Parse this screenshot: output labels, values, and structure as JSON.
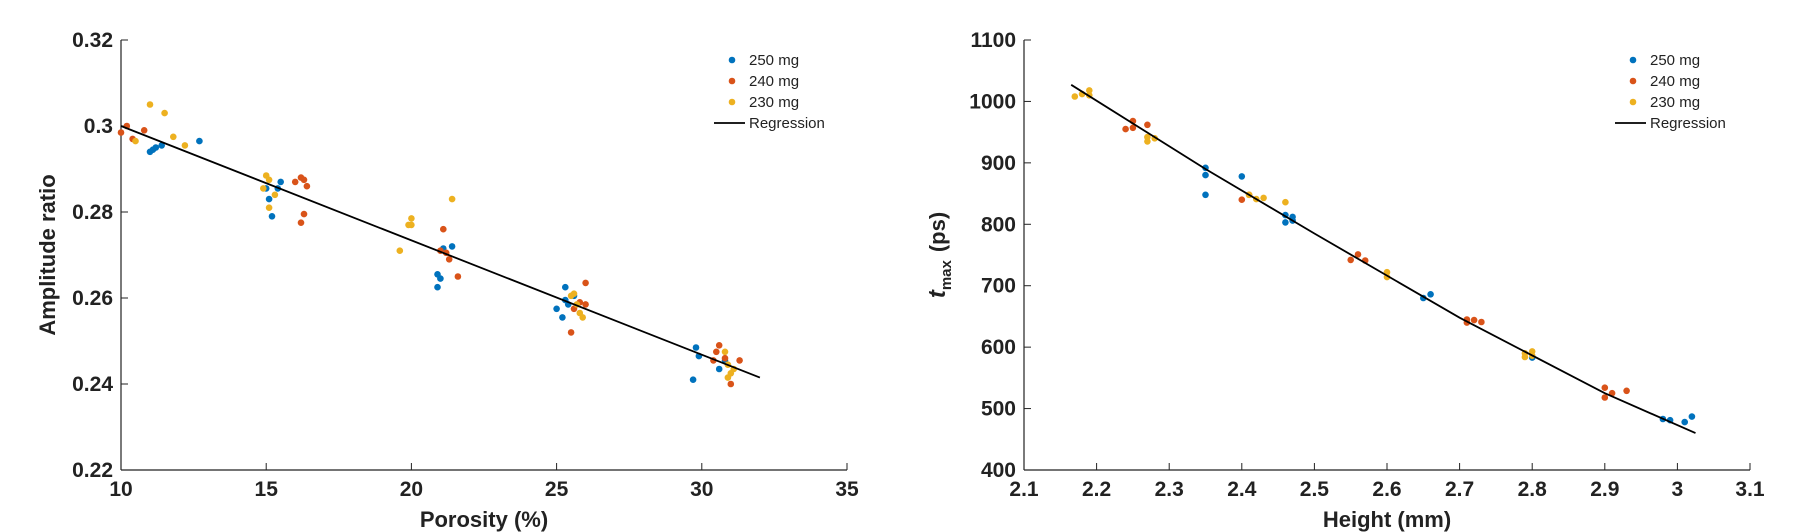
{
  "chart_data": [
    {
      "type": "scatter",
      "xlabel": "Porosity (%)",
      "ylabel": "Amplitude ratio",
      "xlim": [
        10,
        35
      ],
      "ylim": [
        0.22,
        0.32
      ],
      "xticks": [
        10,
        15,
        20,
        25,
        30,
        35
      ],
      "yticks": [
        0.22,
        0.24,
        0.26,
        0.28,
        0.3,
        0.32
      ],
      "xtick_labels": [
        "10",
        "15",
        "20",
        "25",
        "30",
        "35"
      ],
      "ytick_labels": [
        "0.22",
        "0.24",
        "0.26",
        "0.28",
        "0.3",
        "0.32"
      ],
      "legend_position": "top-right",
      "series": [
        {
          "name": "250 mg",
          "color": "#0072BD",
          "x": [
            11.0,
            11.1,
            11.2,
            11.4,
            12.7,
            15.0,
            15.1,
            15.2,
            15.4,
            15.5,
            20.9,
            21.0,
            20.9,
            21.1,
            21.4,
            25.0,
            25.2,
            25.3,
            25.3,
            25.4,
            25.6,
            29.8,
            29.9,
            30.6,
            30.8,
            29.7
          ],
          "y": [
            0.294,
            0.2945,
            0.295,
            0.2955,
            0.2965,
            0.2855,
            0.283,
            0.279,
            0.2855,
            0.287,
            0.2655,
            0.2645,
            0.2625,
            0.2715,
            0.272,
            0.2575,
            0.2555,
            0.2625,
            0.2595,
            0.2585,
            0.2605,
            0.2485,
            0.2465,
            0.2435,
            0.2455,
            0.241
          ]
        },
        {
          "name": "240 mg",
          "color": "#D95319",
          "x": [
            10.0,
            10.2,
            10.4,
            10.8,
            16.0,
            16.2,
            16.3,
            16.4,
            16.2,
            16.3,
            21.0,
            21.1,
            21.3,
            21.2,
            21.6,
            25.6,
            25.8,
            26.0,
            26.0,
            25.5,
            30.5,
            30.6,
            30.8,
            31.0,
            31.3,
            30.4
          ],
          "y": [
            0.2985,
            0.3,
            0.297,
            0.299,
            0.287,
            0.288,
            0.2875,
            0.286,
            0.2775,
            0.2795,
            0.271,
            0.276,
            0.269,
            0.2705,
            0.265,
            0.2575,
            0.259,
            0.2585,
            0.2635,
            0.252,
            0.2475,
            0.249,
            0.246,
            0.24,
            0.2455,
            0.2455
          ]
        },
        {
          "name": "230 mg",
          "color": "#EDB120",
          "x": [
            10.5,
            11.0,
            11.5,
            11.8,
            12.2,
            14.9,
            15.0,
            15.1,
            15.3,
            15.1,
            19.6,
            19.9,
            20.0,
            20.0,
            21.4,
            25.5,
            25.7,
            25.8,
            25.9,
            25.6,
            30.8,
            30.9,
            31.0,
            31.1,
            30.9
          ],
          "y": [
            0.2965,
            0.305,
            0.303,
            0.2975,
            0.2955,
            0.2855,
            0.2885,
            0.2875,
            0.284,
            0.281,
            0.271,
            0.277,
            0.2785,
            0.277,
            0.283,
            0.2605,
            0.2585,
            0.2565,
            0.2555,
            0.261,
            0.2475,
            0.2445,
            0.2425,
            0.2435,
            0.2415
          ]
        },
        {
          "name": "Regression",
          "color": "#000000",
          "kind": "line",
          "x": [
            10.0,
            32.0
          ],
          "y": [
            0.3,
            0.2415
          ]
        }
      ]
    },
    {
      "type": "scatter",
      "xlabel": "Height (mm)",
      "ylabel": "t",
      "ylabel_subscript": "max",
      "ylabel_unit": "(ps)",
      "xlim": [
        2.1,
        3.1
      ],
      "ylim": [
        400,
        1100
      ],
      "xticks": [
        2.1,
        2.2,
        2.3,
        2.4,
        2.5,
        2.6,
        2.7,
        2.8,
        2.9,
        3.0,
        3.1
      ],
      "yticks": [
        400,
        500,
        600,
        700,
        800,
        900,
        1000,
        1100
      ],
      "xtick_labels": [
        "2.1",
        "2.2",
        "2.3",
        "2.4",
        "2.5",
        "2.6",
        "2.7",
        "2.8",
        "2.9",
        "3",
        "3.1"
      ],
      "ytick_labels": [
        "400",
        "500",
        "600",
        "700",
        "800",
        "900",
        "1000",
        "1100"
      ],
      "legend_position": "top-right",
      "series": [
        {
          "name": "250 mg",
          "color": "#0072BD",
          "x": [
            2.35,
            2.35,
            2.35,
            2.4,
            2.46,
            2.46,
            2.47,
            2.47,
            2.65,
            2.66,
            2.8,
            2.98,
            2.99,
            3.01,
            3.02
          ],
          "y": [
            892,
            880,
            848,
            878,
            815,
            803,
            812,
            806,
            680,
            686,
            583,
            483,
            481,
            478,
            487
          ]
        },
        {
          "name": "240 mg",
          "color": "#D95319",
          "x": [
            2.24,
            2.25,
            2.25,
            2.27,
            2.4,
            2.41,
            2.55,
            2.56,
            2.57,
            2.71,
            2.71,
            2.72,
            2.73,
            2.9,
            2.9,
            2.91,
            2.93
          ],
          "y": [
            955,
            968,
            957,
            962,
            840,
            848,
            742,
            751,
            741,
            645,
            640,
            644,
            641,
            534,
            518,
            525,
            529
          ]
        },
        {
          "name": "230 mg",
          "color": "#EDB120",
          "x": [
            2.17,
            2.18,
            2.19,
            2.19,
            2.27,
            2.27,
            2.28,
            2.41,
            2.42,
            2.43,
            2.46,
            2.6,
            2.6,
            2.79,
            2.8,
            2.8,
            2.79
          ],
          "y": [
            1008,
            1012,
            1010,
            1018,
            942,
            935,
            940,
            848,
            841,
            843,
            836,
            722,
            714,
            590,
            593,
            586,
            584
          ]
        },
        {
          "name": "Regression",
          "color": "#000000",
          "kind": "line",
          "x": [
            2.165,
            2.35,
            2.5,
            2.7,
            2.9,
            3.025
          ],
          "y": [
            1027,
            890,
            785,
            648,
            525,
            460
          ]
        }
      ]
    }
  ]
}
